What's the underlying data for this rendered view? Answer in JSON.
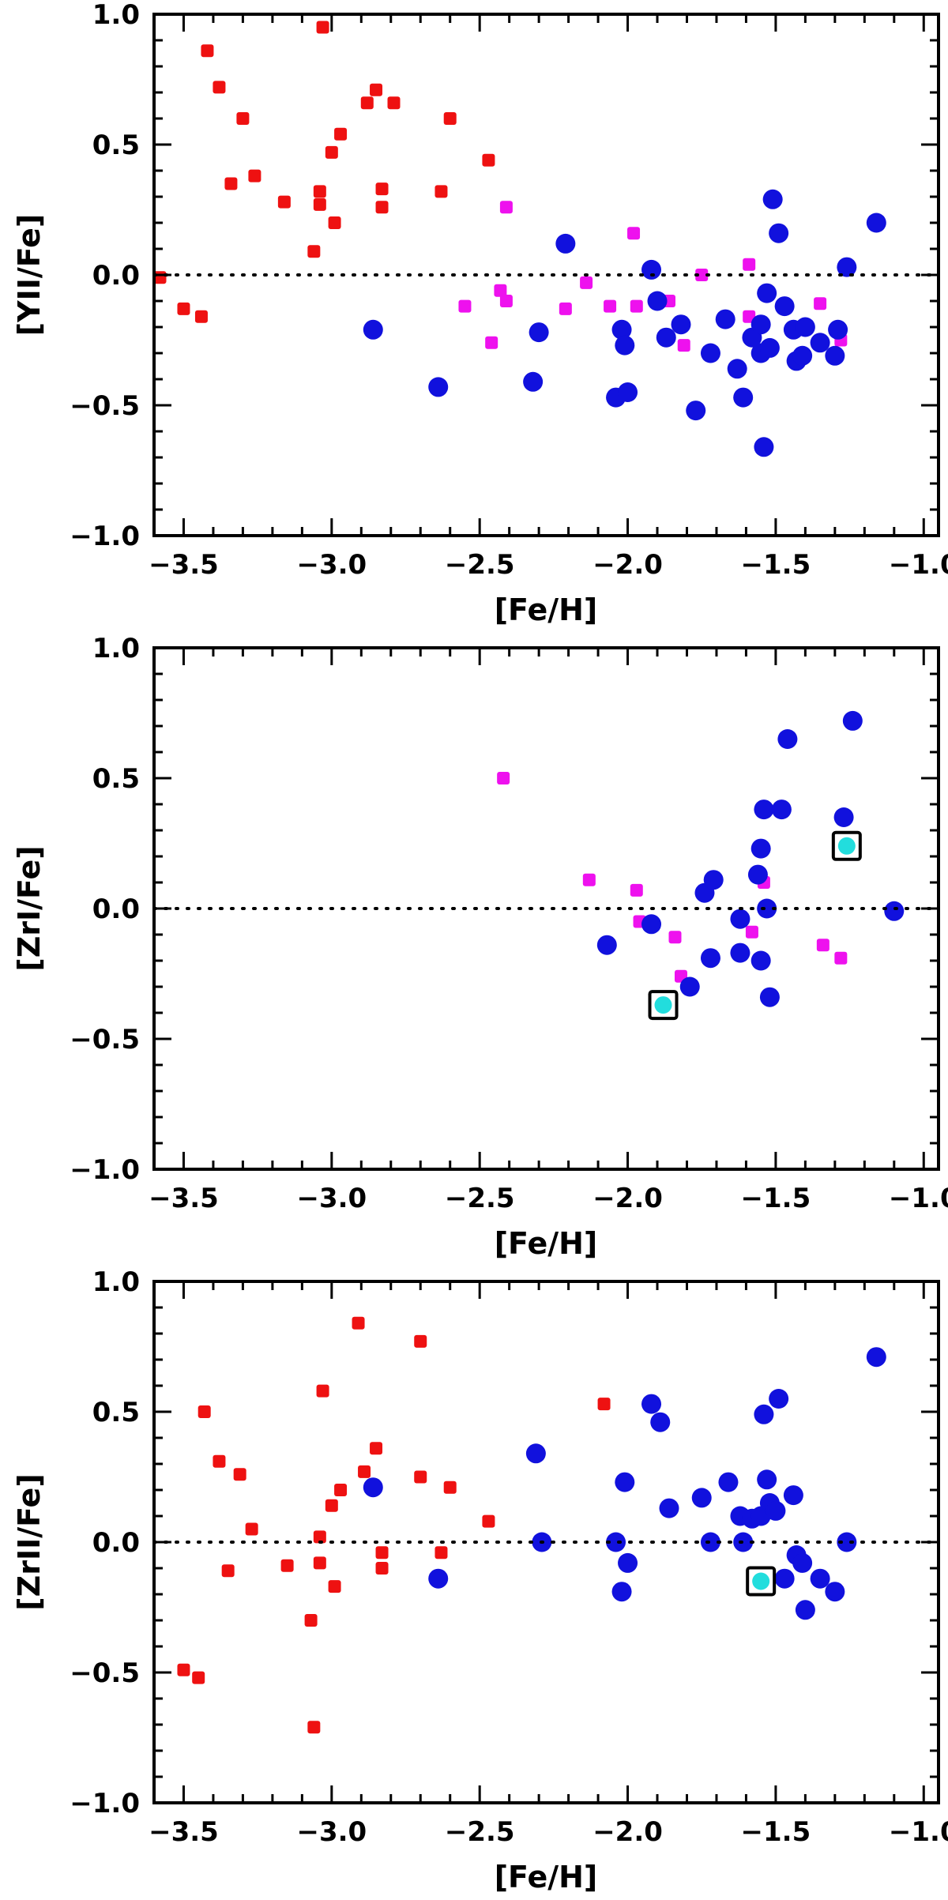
{
  "chart_data": [
    {
      "type": "scatter",
      "xlabel": "[Fe/H]",
      "ylabel": "[YII/Fe]",
      "xlim": [
        -3.6,
        -0.95
      ],
      "ylim": [
        -1.0,
        1.0
      ],
      "xticks": [
        "−3.5",
        "−3.0",
        "−2.5",
        "−2.0",
        "−1.5",
        "−1.0"
      ],
      "yticks": [
        "−1.0",
        "−0.5",
        "0.0",
        "0.5",
        "1.0"
      ],
      "reference_line_y": 0.0,
      "grid": false,
      "series": [
        {
          "marker": "square",
          "color": "#ee1111",
          "points": [
            [
              -3.58,
              -0.01
            ],
            [
              -3.5,
              -0.13
            ],
            [
              -3.44,
              -0.16
            ],
            [
              -3.42,
              0.86
            ],
            [
              -3.38,
              0.72
            ],
            [
              -3.34,
              0.35
            ],
            [
              -3.3,
              0.6
            ],
            [
              -3.26,
              0.38
            ],
            [
              -3.16,
              0.28
            ],
            [
              -3.06,
              0.09
            ],
            [
              -3.04,
              0.32
            ],
            [
              -3.04,
              0.27
            ],
            [
              -3.03,
              0.95
            ],
            [
              -3.0,
              0.47
            ],
            [
              -2.99,
              0.2
            ],
            [
              -2.97,
              0.54
            ],
            [
              -2.88,
              0.66
            ],
            [
              -2.85,
              0.71
            ],
            [
              -2.83,
              0.33
            ],
            [
              -2.83,
              0.26
            ],
            [
              -2.79,
              0.66
            ],
            [
              -2.63,
              0.32
            ],
            [
              -2.6,
              0.6
            ],
            [
              -2.47,
              0.44
            ]
          ]
        },
        {
          "marker": "square",
          "color": "#ee11ee",
          "points": [
            [
              -2.55,
              -0.12
            ],
            [
              -2.46,
              -0.26
            ],
            [
              -2.43,
              -0.06
            ],
            [
              -2.41,
              -0.1
            ],
            [
              -2.41,
              0.26
            ],
            [
              -2.21,
              -0.13
            ],
            [
              -2.14,
              -0.03
            ],
            [
              -2.06,
              -0.12
            ],
            [
              -1.98,
              0.16
            ],
            [
              -1.97,
              -0.12
            ],
            [
              -1.86,
              -0.1
            ],
            [
              -1.81,
              -0.27
            ],
            [
              -1.75,
              0.0
            ],
            [
              -1.59,
              0.04
            ],
            [
              -1.59,
              -0.16
            ],
            [
              -1.35,
              -0.11
            ],
            [
              -1.28,
              -0.25
            ]
          ]
        },
        {
          "marker": "circle",
          "color": "#1111dd",
          "points": [
            [
              -2.86,
              -0.21
            ],
            [
              -2.64,
              -0.43
            ],
            [
              -2.32,
              -0.41
            ],
            [
              -2.3,
              -0.22
            ],
            [
              -2.21,
              0.12
            ],
            [
              -2.04,
              -0.47
            ],
            [
              -2.02,
              -0.21
            ],
            [
              -2.01,
              -0.27
            ],
            [
              -2.0,
              -0.45
            ],
            [
              -1.92,
              0.02
            ],
            [
              -1.9,
              -0.1
            ],
            [
              -1.87,
              -0.24
            ],
            [
              -1.82,
              -0.19
            ],
            [
              -1.77,
              -0.52
            ],
            [
              -1.72,
              -0.3
            ],
            [
              -1.67,
              -0.17
            ],
            [
              -1.63,
              -0.36
            ],
            [
              -1.61,
              -0.47
            ],
            [
              -1.58,
              -0.24
            ],
            [
              -1.55,
              -0.19
            ],
            [
              -1.55,
              -0.3
            ],
            [
              -1.54,
              -0.66
            ],
            [
              -1.53,
              -0.07
            ],
            [
              -1.52,
              -0.28
            ],
            [
              -1.51,
              0.29
            ],
            [
              -1.49,
              0.16
            ],
            [
              -1.47,
              -0.12
            ],
            [
              -1.44,
              -0.21
            ],
            [
              -1.43,
              -0.33
            ],
            [
              -1.41,
              -0.31
            ],
            [
              -1.4,
              -0.2
            ],
            [
              -1.35,
              -0.26
            ],
            [
              -1.3,
              -0.31
            ],
            [
              -1.29,
              -0.21
            ],
            [
              -1.26,
              0.03
            ],
            [
              -1.16,
              0.2
            ]
          ]
        }
      ],
      "highlighted": []
    },
    {
      "type": "scatter",
      "xlabel": "[Fe/H]",
      "ylabel": "[ZrI/Fe]",
      "xlim": [
        -3.6,
        -0.95
      ],
      "ylim": [
        -1.0,
        1.0
      ],
      "xticks": [
        "−3.5",
        "−3.0",
        "−2.5",
        "−2.0",
        "−1.5",
        "−1.0"
      ],
      "yticks": [
        "−1.0",
        "−0.5",
        "0.0",
        "0.5",
        "1.0"
      ],
      "reference_line_y": 0.0,
      "grid": false,
      "series": [
        {
          "marker": "square",
          "color": "#ee11ee",
          "points": [
            [
              -2.42,
              0.5
            ],
            [
              -2.13,
              0.11
            ],
            [
              -1.97,
              0.07
            ],
            [
              -1.96,
              -0.05
            ],
            [
              -1.84,
              -0.11
            ],
            [
              -1.82,
              -0.26
            ],
            [
              -1.54,
              0.1
            ],
            [
              -1.58,
              -0.09
            ],
            [
              -1.34,
              -0.14
            ],
            [
              -1.28,
              -0.19
            ]
          ]
        },
        {
          "marker": "circle",
          "color": "#1111dd",
          "points": [
            [
              -2.07,
              -0.14
            ],
            [
              -1.92,
              -0.06
            ],
            [
              -1.79,
              -0.3
            ],
            [
              -1.74,
              0.06
            ],
            [
              -1.72,
              -0.19
            ],
            [
              -1.71,
              0.11
            ],
            [
              -1.62,
              -0.04
            ],
            [
              -1.62,
              -0.17
            ],
            [
              -1.56,
              0.13
            ],
            [
              -1.55,
              0.23
            ],
            [
              -1.55,
              -0.2
            ],
            [
              -1.54,
              0.38
            ],
            [
              -1.53,
              0.0
            ],
            [
              -1.52,
              -0.34
            ],
            [
              -1.48,
              0.38
            ],
            [
              -1.46,
              0.65
            ],
            [
              -1.27,
              0.35
            ],
            [
              -1.24,
              0.72
            ],
            [
              -1.1,
              -0.01
            ]
          ]
        }
      ],
      "highlighted": [
        [
          -1.88,
          -0.37
        ],
        [
          -1.26,
          0.24
        ]
      ]
    },
    {
      "type": "scatter",
      "xlabel": "[Fe/H]",
      "ylabel": "[ZrII/Fe]",
      "xlim": [
        -3.6,
        -0.95
      ],
      "ylim": [
        -1.0,
        1.0
      ],
      "xticks": [
        "−3.5",
        "−3.0",
        "−2.5",
        "−2.0",
        "−1.5",
        "−1.0"
      ],
      "yticks": [
        "−1.0",
        "−0.5",
        "0.0",
        "0.5",
        "1.0"
      ],
      "reference_line_y": 0.0,
      "grid": false,
      "series": [
        {
          "marker": "square",
          "color": "#ee1111",
          "points": [
            [
              -3.5,
              -0.49
            ],
            [
              -3.45,
              -0.52
            ],
            [
              -3.43,
              0.5
            ],
            [
              -3.38,
              0.31
            ],
            [
              -3.35,
              -0.11
            ],
            [
              -3.31,
              0.26
            ],
            [
              -3.27,
              0.05
            ],
            [
              -3.15,
              -0.09
            ],
            [
              -3.07,
              -0.3
            ],
            [
              -3.06,
              -0.71
            ],
            [
              -3.04,
              0.02
            ],
            [
              -3.04,
              -0.08
            ],
            [
              -3.03,
              0.58
            ],
            [
              -3.0,
              0.14
            ],
            [
              -2.99,
              -0.17
            ],
            [
              -2.97,
              0.2
            ],
            [
              -2.91,
              0.84
            ],
            [
              -2.89,
              0.27
            ],
            [
              -2.85,
              0.36
            ],
            [
              -2.83,
              -0.04
            ],
            [
              -2.83,
              -0.1
            ],
            [
              -2.7,
              0.77
            ],
            [
              -2.7,
              0.25
            ],
            [
              -2.63,
              -0.04
            ],
            [
              -2.6,
              0.21
            ],
            [
              -2.47,
              0.08
            ],
            [
              -2.08,
              0.53
            ]
          ]
        },
        {
          "marker": "circle",
          "color": "#1111dd",
          "points": [
            [
              -2.86,
              0.21
            ],
            [
              -2.64,
              -0.14
            ],
            [
              -2.31,
              0.34
            ],
            [
              -2.29,
              0.0
            ],
            [
              -2.04,
              0.0
            ],
            [
              -2.02,
              -0.19
            ],
            [
              -2.01,
              0.23
            ],
            [
              -2.0,
              -0.08
            ],
            [
              -1.92,
              0.53
            ],
            [
              -1.89,
              0.46
            ],
            [
              -1.86,
              0.13
            ],
            [
              -1.75,
              0.17
            ],
            [
              -1.72,
              0.0
            ],
            [
              -1.66,
              0.23
            ],
            [
              -1.62,
              0.1
            ],
            [
              -1.61,
              0.0
            ],
            [
              -1.58,
              0.09
            ],
            [
              -1.55,
              0.1
            ],
            [
              -1.54,
              0.49
            ],
            [
              -1.53,
              0.24
            ],
            [
              -1.52,
              0.15
            ],
            [
              -1.5,
              0.12
            ],
            [
              -1.49,
              0.55
            ],
            [
              -1.47,
              -0.14
            ],
            [
              -1.44,
              0.18
            ],
            [
              -1.43,
              -0.05
            ],
            [
              -1.41,
              -0.08
            ],
            [
              -1.4,
              -0.26
            ],
            [
              -1.35,
              -0.14
            ],
            [
              -1.3,
              -0.19
            ],
            [
              -1.26,
              0.0
            ],
            [
              -1.16,
              0.71
            ]
          ]
        }
      ],
      "highlighted": [
        [
          -1.55,
          -0.15
        ]
      ]
    }
  ],
  "colors": {
    "red_marker": "#ee1111",
    "magenta_marker": "#ee11ee",
    "blue_marker": "#1111dd",
    "cyan_highlight": "#22dddd",
    "axis": "#000000",
    "background": "#ffffff"
  }
}
